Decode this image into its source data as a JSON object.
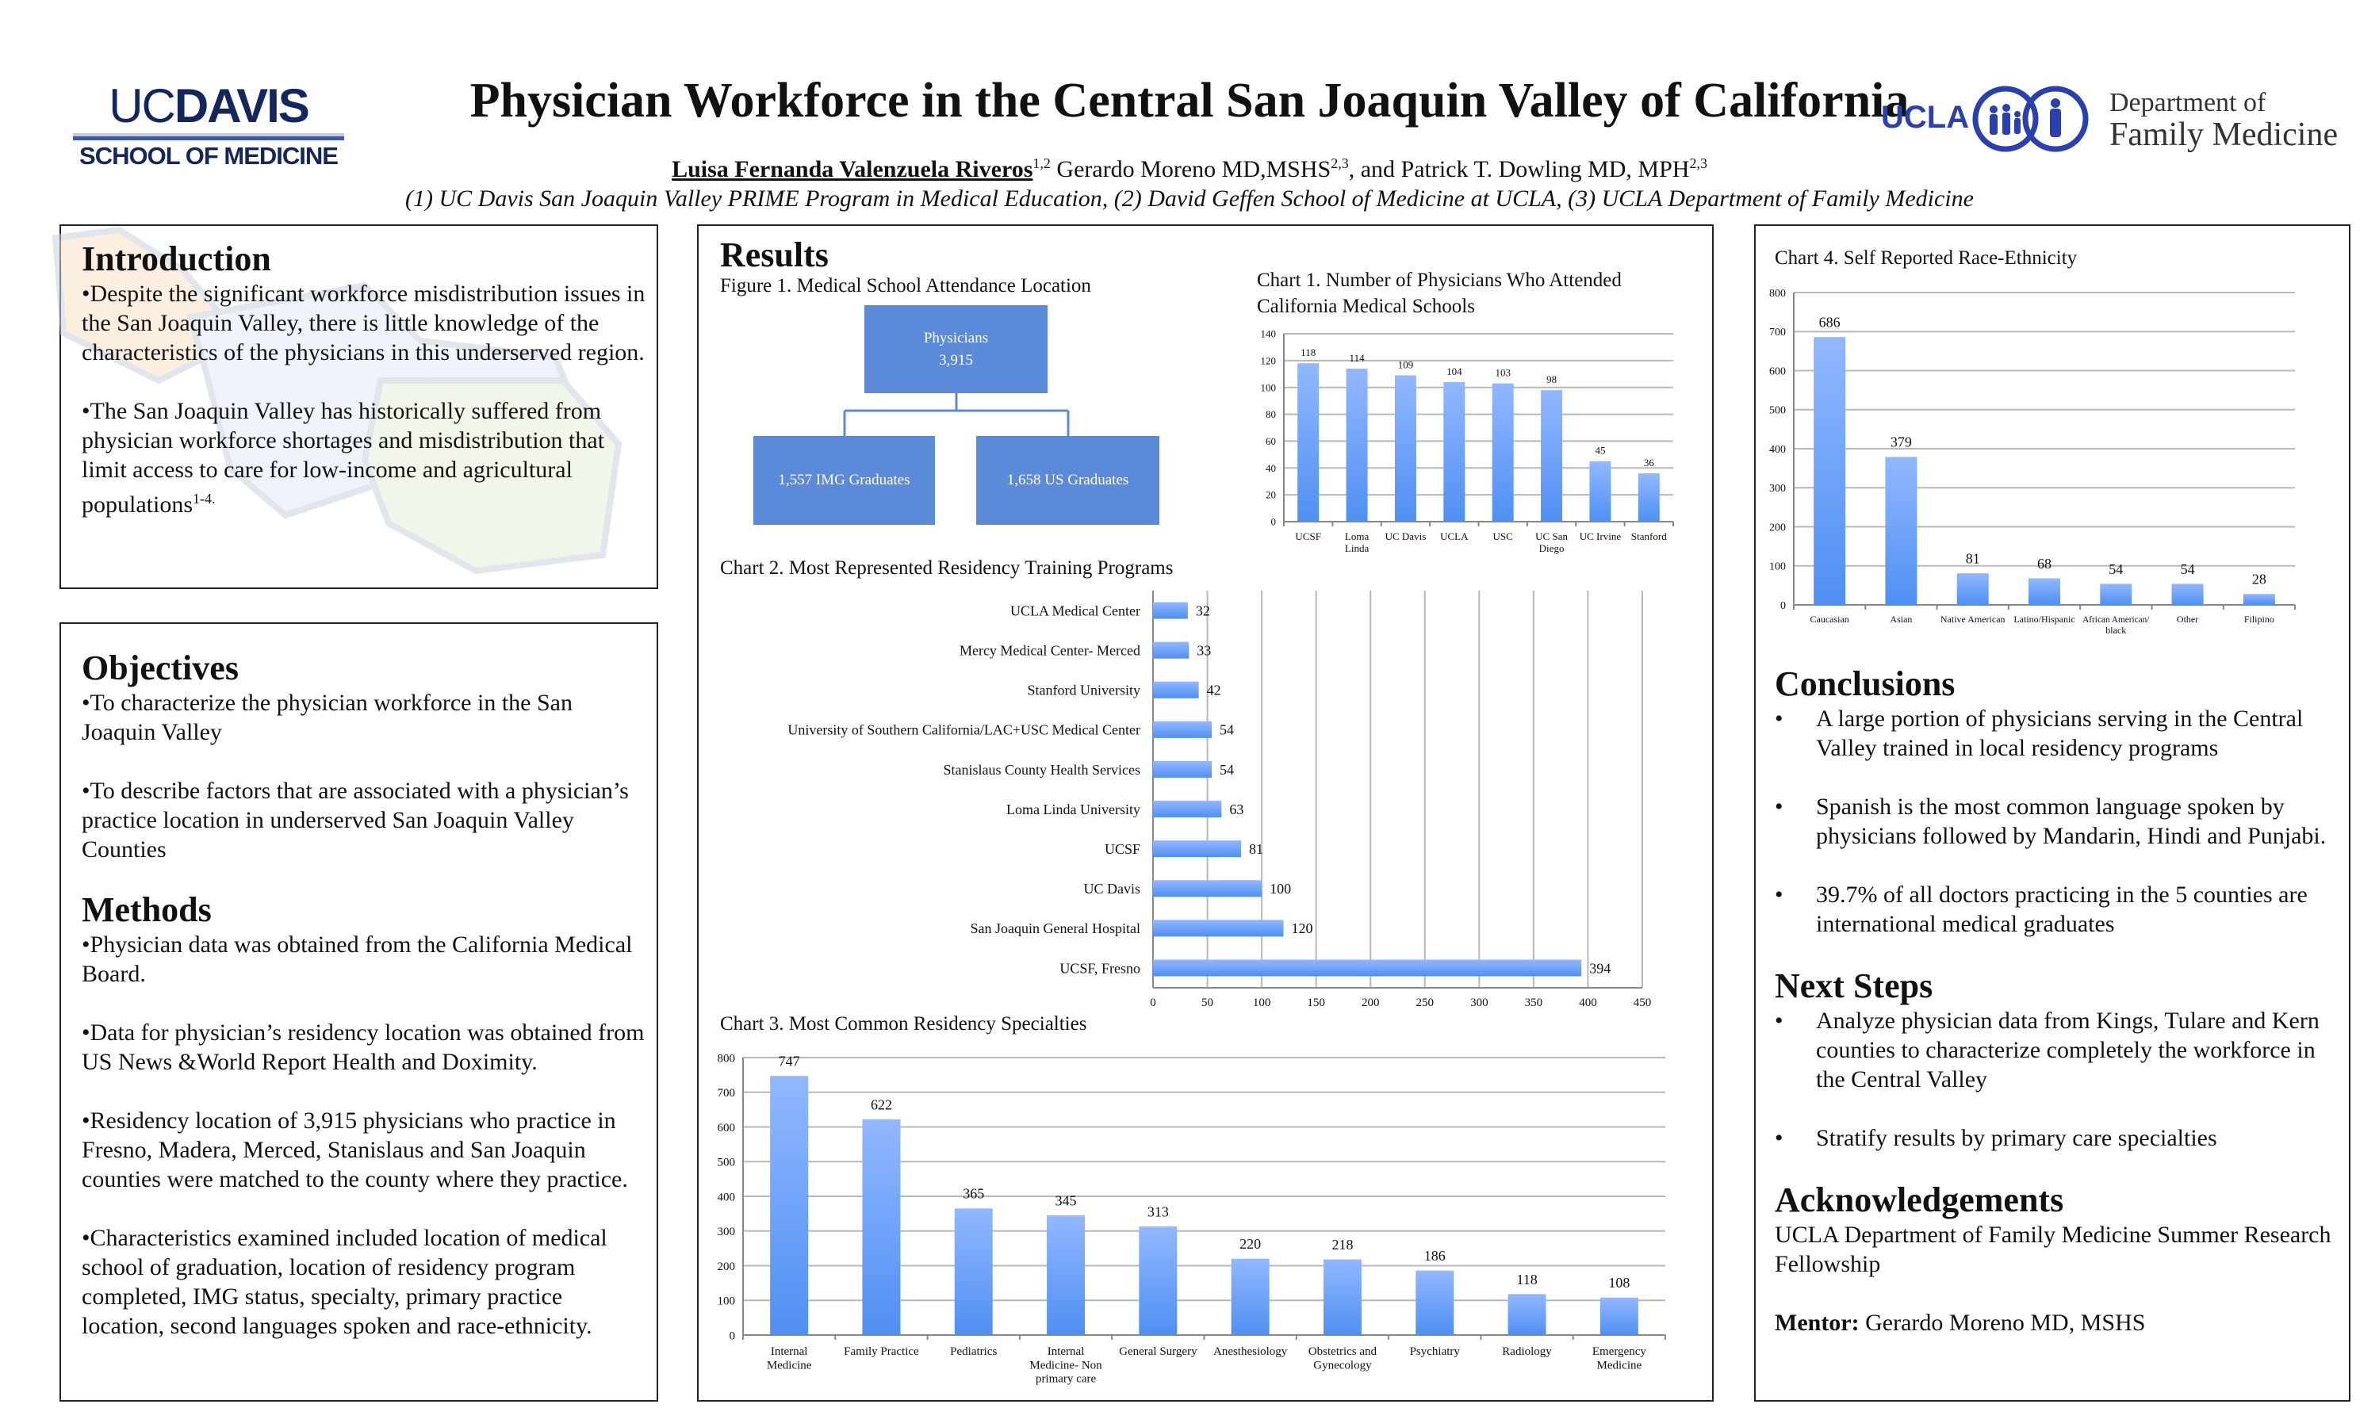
{
  "header": {
    "title": "Physician Workforce in the Central San Joaquin Valley of California",
    "author_main": "Luisa Fernanda Valenzuela Riveros",
    "author_main_sup": "1,2",
    "author_2": " Gerardo Moreno MD,MSHS",
    "author_2_sup": "2,3",
    "author_3": ", and Patrick T. Dowling MD, MPH",
    "author_3_sup": "2,3",
    "affiliations": "(1) UC Davis San Joaquin Valley PRIME Program in Medical Education, (2) David Geffen School of Medicine at UCLA, (3) UCLA Department of Family Medicine"
  },
  "logos": {
    "ucdavis_uc": "UC",
    "ucdavis_davis": "DAVIS",
    "ucdavis_school": "SCHOOL OF MEDICINE",
    "ucla": "UCLA",
    "dept_line1": "Department of",
    "dept_line2": "Family Medicine",
    "colors": {
      "navy": "#13275e",
      "ucla_blue": "#2a3fb0"
    }
  },
  "introduction": {
    "heading": "Introduction",
    "p1": "•Despite the significant workforce misdistribution issues in the San Joaquin Valley, there is little knowledge of the characteristics of the physicians in this underserved region.",
    "p2": "•The San Joaquin Valley has historically suffered from physician workforce shortages and misdistribution that limit access to care for low-income and agricultural populations",
    "p2_sup": "1-4."
  },
  "objectives": {
    "heading": "Objectives",
    "items": [
      "•To characterize the physician workforce in the San Joaquin Valley",
      "•To describe  factors that are associated with a physician’s practice location in underserved San Joaquin Valley Counties"
    ]
  },
  "methods": {
    "heading": "Methods",
    "items": [
      "•Physician data was obtained from the California Medical Board.",
      "•Data for physician’s residency location was obtained from US News &World Report Health and Doximity.",
      "•Residency location of 3,915 physicians who practice in Fresno, Madera, Merced, Stanislaus and San Joaquin counties were matched to the county where they practice.",
      "•Characteristics examined included location of medical school of graduation, location of residency program completed, IMG status, specialty, primary practice location, second languages spoken and race-ethnicity."
    ]
  },
  "results": {
    "heading": "Results",
    "figure1": {
      "caption": "Figure 1. Medical School Attendance Location",
      "root_line1": "Physicians",
      "root_line2": "3,915",
      "left": "1,557 IMG Graduates",
      "right": "1,658 US Graduates",
      "box_color": "#5b8bd8"
    }
  },
  "chart_data": [
    {
      "id": "chart1",
      "type": "bar",
      "title": "Chart 1. Number of Physicians Who Attended California Medical Schools",
      "title_line1": "Chart 1. Number of Physicians Who Attended",
      "title_line2": "California Medical Schools",
      "categories": [
        "UCSF",
        "Loma\nLinda",
        "UC Davis",
        "UCLA",
        "USC",
        "UC San\nDiego",
        "UC Irvine",
        "Stanford"
      ],
      "values": [
        118,
        114,
        109,
        104,
        103,
        98,
        45,
        36
      ],
      "ylim": [
        0,
        140
      ],
      "yticks": [
        0,
        20,
        40,
        60,
        80,
        100,
        120,
        140
      ],
      "grid": true,
      "xlabel": "",
      "ylabel": ""
    },
    {
      "id": "chart2",
      "type": "bar",
      "orientation": "horizontal",
      "title": "Chart 2. Most Represented Residency Training Programs",
      "categories": [
        "UCLA Medical Center",
        "Mercy Medical Center- Merced",
        "Stanford University",
        "University of Southern California/LAC+USC Medical Center",
        "Stanislaus County Health Services",
        "Loma Linda University",
        "UCSF",
        "UC Davis",
        "San Joaquin General Hospital",
        "UCSF, Fresno"
      ],
      "values": [
        32,
        33,
        42,
        54,
        54,
        63,
        81,
        100,
        120,
        394
      ],
      "xlim": [
        0,
        450
      ],
      "xticks": [
        0,
        50,
        100,
        150,
        200,
        250,
        300,
        350,
        400,
        450
      ],
      "grid": true,
      "xlabel": "",
      "ylabel": ""
    },
    {
      "id": "chart3",
      "type": "bar",
      "title": "Chart 3.  Most Common Residency Specialties",
      "categories": [
        "Internal\nMedicine",
        "Family Practice",
        "Pediatrics",
        "Internal\nMedicine- Non\nprimary care",
        "General Surgery",
        "Anesthesiology",
        "Obstetrics and\nGynecology",
        "Psychiatry",
        "Radiology",
        "Emergency\nMedicine"
      ],
      "values": [
        747,
        622,
        365,
        345,
        313,
        220,
        218,
        186,
        118,
        108
      ],
      "ylim": [
        0,
        800
      ],
      "yticks": [
        0,
        100,
        200,
        300,
        400,
        500,
        600,
        700,
        800
      ],
      "grid": true,
      "xlabel": "",
      "ylabel": ""
    },
    {
      "id": "chart4",
      "type": "bar",
      "title": "Chart 4.  Self Reported Race-Ethnicity",
      "categories": [
        "Caucasian",
        "Asian",
        "Native American",
        "Latino/Hispanic",
        "African American/\nblack",
        "Other",
        "Filipino"
      ],
      "values": [
        686,
        379,
        81,
        68,
        54,
        54,
        28
      ],
      "ylim": [
        0,
        800
      ],
      "yticks": [
        0,
        100,
        200,
        300,
        400,
        500,
        600,
        700,
        800
      ],
      "grid": true,
      "xlabel": "",
      "ylabel": ""
    }
  ],
  "bar_colors": {
    "top": "#92b8ff",
    "bottom": "#4f8ff2"
  },
  "conclusions": {
    "heading": "Conclusions",
    "items": [
      "A large portion of physicians serving in the Central Valley trained in local residency programs",
      "Spanish is the most common language spoken by physicians followed by Mandarin, Hindi and Punjabi.",
      "39.7% of  all doctors practicing in the 5 counties are international medical graduates"
    ]
  },
  "next_steps": {
    "heading": "Next Steps",
    "items": [
      "Analyze physician data from Kings, Tulare and Kern counties to characterize completely the workforce in the Central Valley",
      "Stratify results by primary care specialties"
    ]
  },
  "acknowledgements": {
    "heading": "Acknowledgements",
    "text": "UCLA Department of Family Medicine Summer Research Fellowship",
    "mentor_label": "Mentor:",
    "mentor_name": " Gerardo Moreno MD, MSHS"
  },
  "bullet": "•"
}
